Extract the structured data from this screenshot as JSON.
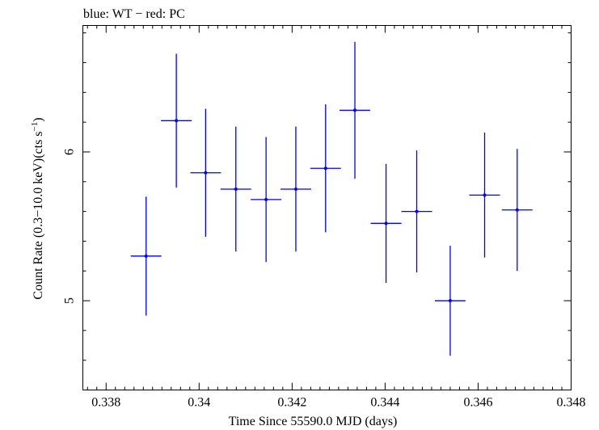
{
  "chart_data": {
    "type": "scatter",
    "title": "blue: WT − red: PC",
    "xlabel": "Time Since 55590.0 MJD (days)",
    "ylabel_main": "Count Rate (0.3−10.0 keV)(cts s",
    "ylabel_sup": "−1",
    "ylabel_close": ")",
    "xlim": [
      0.3375,
      0.348
    ],
    "ylim": [
      4.4,
      6.85
    ],
    "x_ticks": [
      {
        "value": 0.338,
        "label": "0.338"
      },
      {
        "value": 0.34,
        "label": "0.34"
      },
      {
        "value": 0.342,
        "label": "0.342"
      },
      {
        "value": 0.344,
        "label": "0.344"
      },
      {
        "value": 0.346,
        "label": "0.346"
      },
      {
        "value": 0.348,
        "label": "0.348"
      }
    ],
    "y_ticks": [
      {
        "value": 5,
        "label": "5"
      },
      {
        "value": 6,
        "label": "6"
      }
    ],
    "grid": false,
    "series": [
      {
        "color": "#0000ff",
        "points": [
          {
            "x": 0.33886,
            "xerr": 0.00033,
            "y": 5.3,
            "yerr": 0.4
          },
          {
            "x": 0.33951,
            "xerr": 0.00033,
            "y": 6.21,
            "yerr": 0.45
          },
          {
            "x": 0.34014,
            "xerr": 0.00033,
            "y": 5.86,
            "yerr": 0.43
          },
          {
            "x": 0.34079,
            "xerr": 0.00033,
            "y": 5.75,
            "yerr": 0.42
          },
          {
            "x": 0.34144,
            "xerr": 0.00033,
            "y": 5.68,
            "yerr": 0.42
          },
          {
            "x": 0.34208,
            "xerr": 0.00033,
            "y": 5.75,
            "yerr": 0.42
          },
          {
            "x": 0.34272,
            "xerr": 0.00033,
            "y": 5.89,
            "yerr": 0.43
          },
          {
            "x": 0.34335,
            "xerr": 0.00033,
            "y": 6.28,
            "yerr": 0.46
          },
          {
            "x": 0.34402,
            "xerr": 0.00033,
            "y": 5.52,
            "yerr": 0.4
          },
          {
            "x": 0.34468,
            "xerr": 0.00033,
            "y": 5.6,
            "yerr": 0.41
          },
          {
            "x": 0.3454,
            "xerr": 0.00033,
            "y": 5.0,
            "yerr": 0.37
          },
          {
            "x": 0.34614,
            "xerr": 0.00033,
            "y": 5.71,
            "yerr": 0.42
          },
          {
            "x": 0.34684,
            "xerr": 0.00033,
            "y": 5.61,
            "yerr": 0.41
          }
        ]
      }
    ]
  }
}
